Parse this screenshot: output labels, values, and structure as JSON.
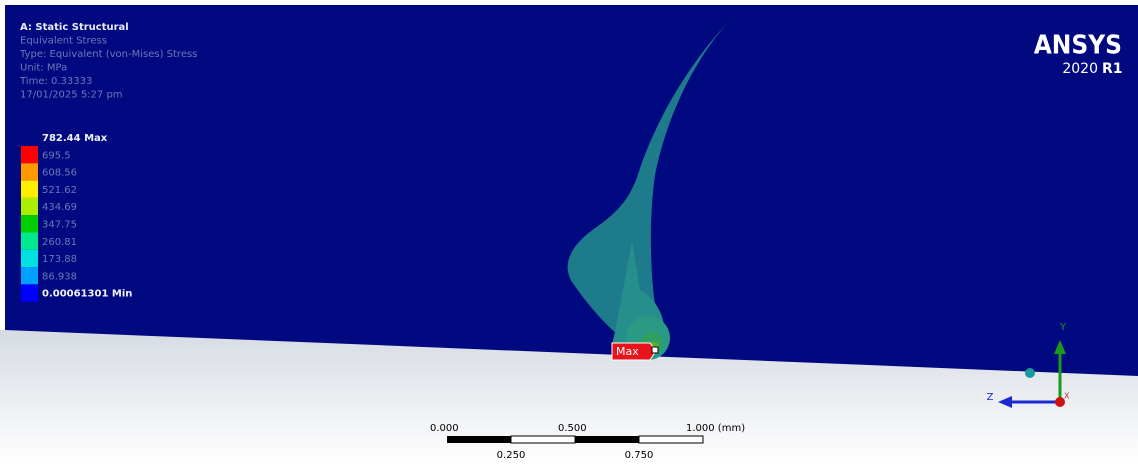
{
  "header": {
    "lines": [
      "A: Static Structural",
      "Equivalent Stress",
      "Type: Equivalent (von-Mises) Stress",
      "Unit: MPa",
      "Time: 0.33333",
      "17/01/2025 5:27 pm"
    ]
  },
  "legend": {
    "labels": [
      "782.44 Max",
      "695.5",
      "608.56",
      "521.62",
      "434.69",
      "347.75",
      "260.81",
      "173.88",
      "86.938",
      "0.00061301 Min"
    ],
    "colors": [
      "#ff0000",
      "#ff9900",
      "#ffee00",
      "#aaee00",
      "#00d000",
      "#00e890",
      "#00e0e0",
      "#00a0ff",
      "#0000ff"
    ]
  },
  "logo": {
    "brand": "ANSYS",
    "version": "2020",
    "release": "R1"
  },
  "probe": {
    "label": "Max"
  },
  "scale_bar": {
    "top_labels": [
      "0.000",
      "0.500",
      "1.000 (mm)"
    ],
    "bottom_labels": [
      "0.250",
      "0.750"
    ]
  },
  "triad": {
    "y": "Y",
    "z": "Z",
    "x": "X"
  }
}
